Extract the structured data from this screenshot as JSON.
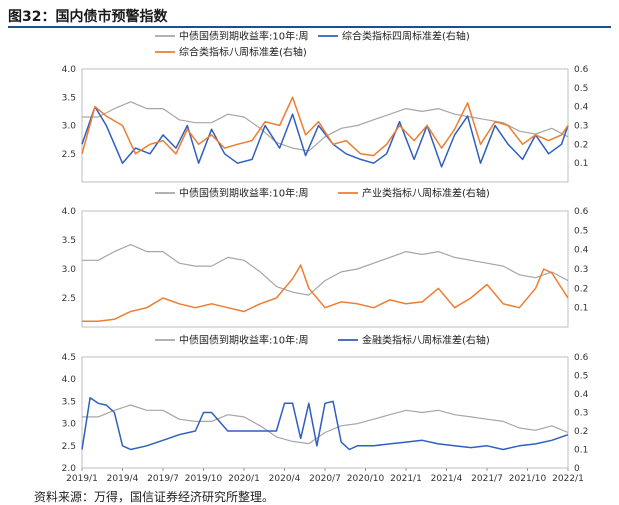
{
  "title": "图32：国内债市预警指数",
  "source": "资料来源：万得，国信证券经济研究所整理。",
  "colors": {
    "gray": "#a6a6a6",
    "blue": "#2f5fbf",
    "orange": "#ed7d31"
  },
  "chart_data": [
    {
      "type": "line",
      "ylim_left": [
        2.0,
        4.0
      ],
      "yticks_left": [
        "4.0",
        "3.5",
        "3.0",
        "2.5"
      ],
      "ylim_right": [
        0,
        0.6
      ],
      "yticks_right": [
        "0.6",
        "0.5",
        "0.4",
        "0.3",
        "0.2",
        "0.1"
      ],
      "legend": [
        "中债国债到期收益率:10年:周",
        "综合类指标四周标准差(右轴)",
        "综合类指标八周标准差(右轴)"
      ],
      "series": [
        {
          "name": "中债国债到期收益率:10年:周",
          "axis": "left",
          "color": "gray",
          "x": [
            2019.0,
            2019.1,
            2019.2,
            2019.3,
            2019.4,
            2019.5,
            2019.6,
            2019.7,
            2019.8,
            2019.9,
            2020.0,
            2020.1,
            2020.2,
            2020.3,
            2020.4,
            2020.5,
            2020.6,
            2020.7,
            2020.8,
            2020.9,
            2021.0,
            2021.1,
            2021.2,
            2021.3,
            2021.4,
            2021.5,
            2021.6,
            2021.7,
            2021.8,
            2021.9,
            2022.0
          ],
          "values": [
            3.15,
            3.15,
            3.3,
            3.42,
            3.3,
            3.3,
            3.1,
            3.05,
            3.05,
            3.2,
            3.15,
            2.95,
            2.7,
            2.6,
            2.55,
            2.8,
            2.95,
            3.0,
            3.1,
            3.2,
            3.3,
            3.25,
            3.3,
            3.2,
            3.15,
            3.1,
            3.05,
            2.9,
            2.85,
            2.95,
            2.8
          ]
        },
        {
          "name": "综合类指标四周标准差(右轴)",
          "axis": "right",
          "color": "blue",
          "x": [
            2019.0,
            2019.08,
            2019.15,
            2019.25,
            2019.33,
            2019.42,
            2019.5,
            2019.58,
            2019.65,
            2019.72,
            2019.8,
            2019.88,
            2019.96,
            2020.05,
            2020.13,
            2020.22,
            2020.3,
            2020.38,
            2020.46,
            2020.55,
            2020.63,
            2020.72,
            2020.8,
            2020.88,
            2020.96,
            2021.05,
            2021.13,
            2021.22,
            2021.3,
            2021.38,
            2021.46,
            2021.55,
            2021.63,
            2021.72,
            2021.8,
            2021.88,
            2021.96,
            2022.0
          ],
          "values": [
            0.2,
            0.4,
            0.3,
            0.1,
            0.18,
            0.15,
            0.25,
            0.18,
            0.3,
            0.1,
            0.28,
            0.15,
            0.1,
            0.12,
            0.3,
            0.18,
            0.36,
            0.14,
            0.3,
            0.2,
            0.15,
            0.12,
            0.1,
            0.15,
            0.32,
            0.12,
            0.3,
            0.08,
            0.25,
            0.35,
            0.1,
            0.3,
            0.2,
            0.12,
            0.25,
            0.15,
            0.2,
            0.3
          ]
        },
        {
          "name": "综合类指标八周标准差(右轴)",
          "axis": "right",
          "color": "orange",
          "x": [
            2019.0,
            2019.08,
            2019.15,
            2019.25,
            2019.33,
            2019.42,
            2019.5,
            2019.58,
            2019.65,
            2019.72,
            2019.8,
            2019.88,
            2019.96,
            2020.05,
            2020.13,
            2020.22,
            2020.3,
            2020.38,
            2020.46,
            2020.55,
            2020.63,
            2020.72,
            2020.8,
            2020.88,
            2020.96,
            2021.05,
            2021.13,
            2021.22,
            2021.3,
            2021.38,
            2021.46,
            2021.55,
            2021.63,
            2021.72,
            2021.8,
            2021.88,
            2021.96,
            2022.0
          ],
          "values": [
            0.15,
            0.4,
            0.35,
            0.3,
            0.15,
            0.2,
            0.22,
            0.15,
            0.28,
            0.2,
            0.25,
            0.18,
            0.2,
            0.22,
            0.32,
            0.3,
            0.45,
            0.25,
            0.32,
            0.2,
            0.22,
            0.15,
            0.14,
            0.2,
            0.3,
            0.22,
            0.3,
            0.18,
            0.28,
            0.42,
            0.2,
            0.32,
            0.3,
            0.2,
            0.25,
            0.22,
            0.25,
            0.3
          ]
        }
      ]
    },
    {
      "type": "line",
      "ylim_left": [
        2.0,
        4.0
      ],
      "yticks_left": [
        "4.0",
        "3.5",
        "3.0",
        "2.5"
      ],
      "ylim_right": [
        0,
        0.6
      ],
      "yticks_right": [
        "0.6",
        "0.5",
        "0.4",
        "0.3",
        "0.2",
        "0.1"
      ],
      "legend": [
        "中债国债到期收益率:10年:周",
        "产业类指标八周标准差(右轴)"
      ],
      "series": [
        {
          "name": "中债国债到期收益率:10年:周",
          "axis": "left",
          "color": "gray",
          "x": [
            2019.0,
            2019.1,
            2019.2,
            2019.3,
            2019.4,
            2019.5,
            2019.6,
            2019.7,
            2019.8,
            2019.9,
            2020.0,
            2020.1,
            2020.2,
            2020.3,
            2020.4,
            2020.5,
            2020.6,
            2020.7,
            2020.8,
            2020.9,
            2021.0,
            2021.1,
            2021.2,
            2021.3,
            2021.4,
            2021.5,
            2021.6,
            2021.7,
            2021.8,
            2021.9,
            2022.0
          ],
          "values": [
            3.15,
            3.15,
            3.3,
            3.42,
            3.3,
            3.3,
            3.1,
            3.05,
            3.05,
            3.2,
            3.15,
            2.95,
            2.7,
            2.6,
            2.55,
            2.8,
            2.95,
            3.0,
            3.1,
            3.2,
            3.3,
            3.25,
            3.3,
            3.2,
            3.15,
            3.1,
            3.05,
            2.9,
            2.85,
            2.95,
            2.8
          ]
        },
        {
          "name": "产业类指标八周标准差(右轴)",
          "axis": "right",
          "color": "orange",
          "x": [
            2019.0,
            2019.1,
            2019.2,
            2019.3,
            2019.4,
            2019.5,
            2019.6,
            2019.7,
            2019.8,
            2019.9,
            2020.0,
            2020.1,
            2020.2,
            2020.3,
            2020.35,
            2020.4,
            2020.5,
            2020.6,
            2020.7,
            2020.8,
            2020.9,
            2021.0,
            2021.1,
            2021.2,
            2021.3,
            2021.4,
            2021.5,
            2021.6,
            2021.7,
            2021.8,
            2021.85,
            2021.9,
            2022.0
          ],
          "values": [
            0.03,
            0.03,
            0.04,
            0.08,
            0.1,
            0.15,
            0.12,
            0.1,
            0.12,
            0.1,
            0.08,
            0.12,
            0.15,
            0.25,
            0.32,
            0.2,
            0.1,
            0.13,
            0.12,
            0.1,
            0.14,
            0.12,
            0.13,
            0.2,
            0.1,
            0.15,
            0.22,
            0.12,
            0.1,
            0.2,
            0.3,
            0.28,
            0.15
          ]
        }
      ]
    },
    {
      "type": "line",
      "ylim_left": [
        2.0,
        4.5
      ],
      "yticks_left": [
        "4.5",
        "4.0",
        "3.5",
        "3.0",
        "2.5",
        "2.0"
      ],
      "ylim_right": [
        0,
        0.6
      ],
      "yticks_right": [
        "0.6",
        "0.5",
        "0.4",
        "0.3",
        "0.2",
        "0.1",
        "0"
      ],
      "xticks": [
        "2019/1",
        "2019/4",
        "2019/7",
        "2019/10",
        "2020/1",
        "2020/4",
        "2020/7",
        "2020/10",
        "2021/1",
        "2021/4",
        "2021/7",
        "2021/10",
        "2022/1"
      ],
      "legend": [
        "中债国债到期收益率:10年:周",
        "金融类指标八周标准差(右轴)"
      ],
      "series": [
        {
          "name": "中债国债到期收益率:10年:周",
          "axis": "left",
          "color": "gray",
          "x": [
            2019.0,
            2019.1,
            2019.2,
            2019.3,
            2019.4,
            2019.5,
            2019.6,
            2019.7,
            2019.8,
            2019.9,
            2020.0,
            2020.1,
            2020.2,
            2020.3,
            2020.4,
            2020.5,
            2020.6,
            2020.7,
            2020.8,
            2020.9,
            2021.0,
            2021.1,
            2021.2,
            2021.3,
            2021.4,
            2021.5,
            2021.6,
            2021.7,
            2021.8,
            2021.9,
            2022.0
          ],
          "values": [
            3.15,
            3.15,
            3.3,
            3.42,
            3.3,
            3.3,
            3.1,
            3.05,
            3.05,
            3.2,
            3.15,
            2.95,
            2.7,
            2.6,
            2.55,
            2.8,
            2.95,
            3.0,
            3.1,
            3.2,
            3.3,
            3.25,
            3.3,
            3.2,
            3.15,
            3.1,
            3.05,
            2.9,
            2.85,
            2.95,
            2.8
          ]
        },
        {
          "name": "金融类指标八周标准差(右轴)",
          "axis": "right",
          "color": "blue",
          "x": [
            2019.0,
            2019.05,
            2019.1,
            2019.15,
            2019.2,
            2019.25,
            2019.3,
            2019.4,
            2019.5,
            2019.6,
            2019.7,
            2019.75,
            2019.8,
            2019.9,
            2020.0,
            2020.1,
            2020.2,
            2020.25,
            2020.3,
            2020.35,
            2020.4,
            2020.45,
            2020.5,
            2020.55,
            2020.6,
            2020.65,
            2020.7,
            2020.8,
            2020.9,
            2021.0,
            2021.1,
            2021.2,
            2021.3,
            2021.4,
            2021.5,
            2021.6,
            2021.7,
            2021.8,
            2021.9,
            2022.0
          ],
          "values": [
            0.1,
            0.38,
            0.35,
            0.34,
            0.3,
            0.12,
            0.1,
            0.12,
            0.15,
            0.18,
            0.2,
            0.3,
            0.3,
            0.2,
            0.2,
            0.2,
            0.2,
            0.35,
            0.35,
            0.16,
            0.35,
            0.12,
            0.35,
            0.36,
            0.14,
            0.1,
            0.12,
            0.12,
            0.13,
            0.14,
            0.15,
            0.13,
            0.12,
            0.11,
            0.12,
            0.1,
            0.12,
            0.13,
            0.15,
            0.18
          ]
        }
      ]
    }
  ]
}
